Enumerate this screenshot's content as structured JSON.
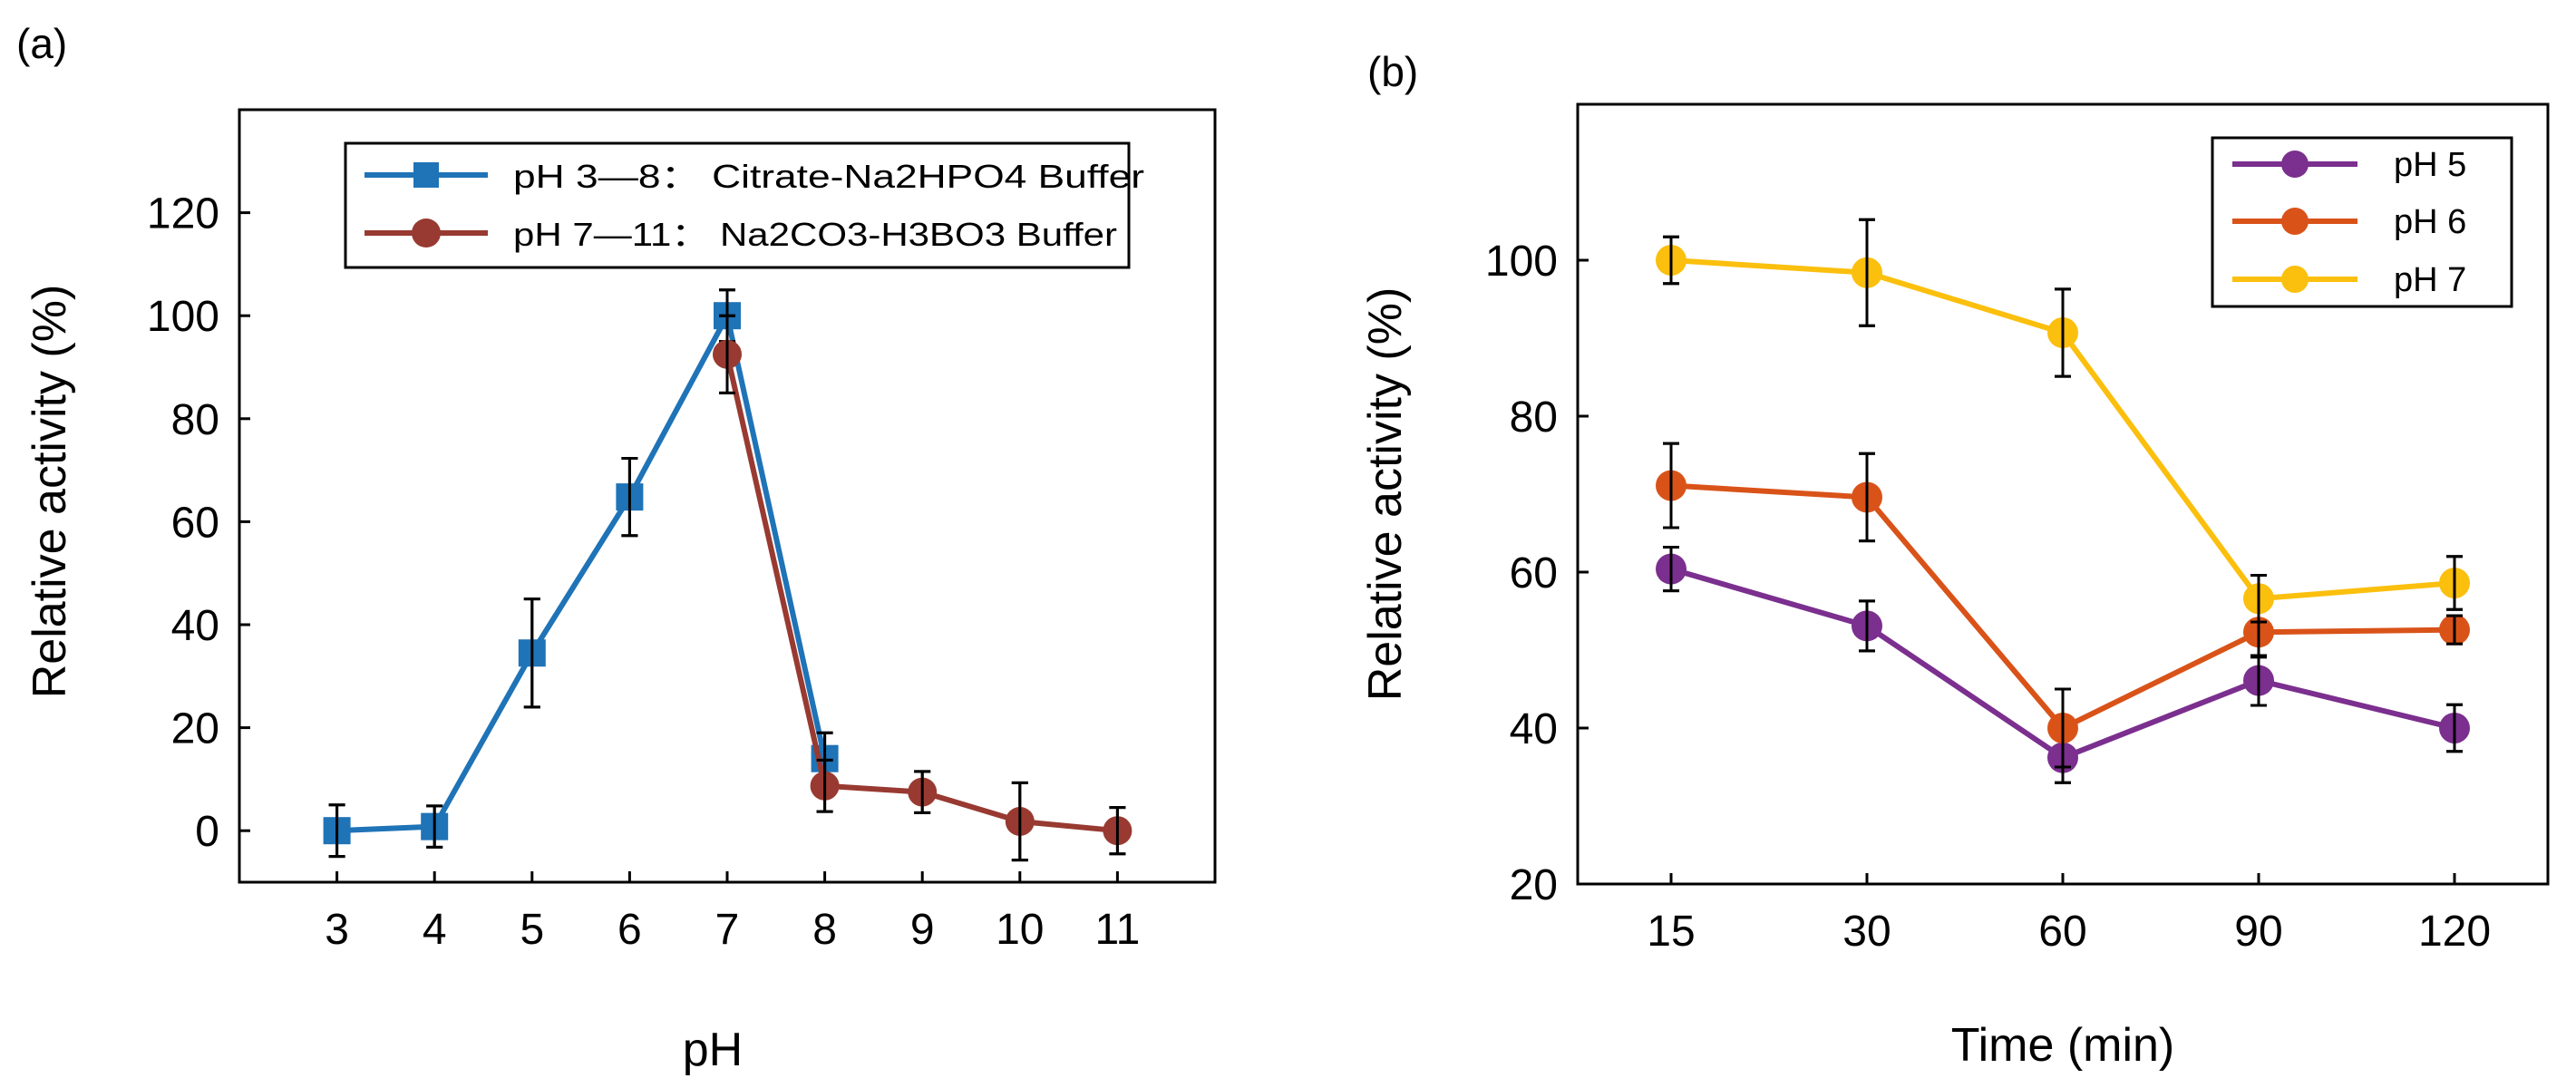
{
  "chart_data": [
    {
      "panel_label": "(a)",
      "type": "line",
      "xlabel": "pH",
      "ylabel": "Relative activity (%)",
      "xlim": [
        2.0,
        12.0
      ],
      "ylim": [
        -10,
        140
      ],
      "xticks": [
        3,
        4,
        5,
        6,
        7,
        8,
        9,
        10,
        11
      ],
      "yticks": [
        0,
        20,
        40,
        60,
        80,
        100,
        120
      ],
      "legend_position": "top-center",
      "series": [
        {
          "name": "pH 3—8： Citrate-Na2HPO4 Buffer",
          "marker": "square",
          "color": "#1f73b7",
          "points": [
            {
              "x": 3,
              "y": 0.0,
              "err": 5.0
            },
            {
              "x": 4,
              "y": 0.8,
              "err": 4.0
            },
            {
              "x": 5,
              "y": 34.5,
              "err": 10.5
            },
            {
              "x": 6,
              "y": 64.8,
              "err": 7.5
            },
            {
              "x": 7,
              "y": 100.0,
              "err": 5.0
            },
            {
              "x": 8,
              "y": 14.0,
              "err": 5.0
            }
          ]
        },
        {
          "name": "pH 7—11： Na2CO3-H3BO3 Buffer",
          "marker": "circle",
          "color": "#983a31",
          "points": [
            {
              "x": 7,
              "y": 92.5,
              "err": 7.5
            },
            {
              "x": 8,
              "y": 8.7,
              "err": 5.0
            },
            {
              "x": 9,
              "y": 7.5,
              "err": 4.0
            },
            {
              "x": 10,
              "y": 1.8,
              "err": 7.5
            },
            {
              "x": 11,
              "y": 0.0,
              "err": 4.5
            }
          ]
        }
      ]
    },
    {
      "panel_label": "(b)",
      "type": "line",
      "xlabel": "Time (min)",
      "ylabel": "Relative activity (%)",
      "categories": [
        "15",
        "30",
        "60",
        "90",
        "120"
      ],
      "ylim": [
        20,
        120
      ],
      "yticks": [
        20,
        40,
        60,
        80,
        100
      ],
      "legend_position": "top-right",
      "series": [
        {
          "name": "pH 5",
          "marker": "circle",
          "color": "#7b2f8e",
          "values": [
            60.4,
            53.1,
            36.2,
            46.1,
            40.0
          ],
          "errors": [
            2.8,
            3.2,
            3.2,
            3.2,
            3.0
          ]
        },
        {
          "name": "pH 6",
          "marker": "circle",
          "color": "#d95319",
          "values": [
            71.1,
            69.6,
            40.0,
            52.3,
            52.6
          ],
          "errors": [
            5.4,
            5.6,
            5.0,
            3.2,
            1.8
          ]
        },
        {
          "name": "pH 7",
          "marker": "circle",
          "color": "#fbbf0d",
          "values": [
            100.0,
            98.4,
            90.7,
            56.6,
            58.6
          ],
          "errors": [
            3.0,
            6.8,
            5.6,
            3.0,
            3.4
          ]
        }
      ]
    }
  ]
}
